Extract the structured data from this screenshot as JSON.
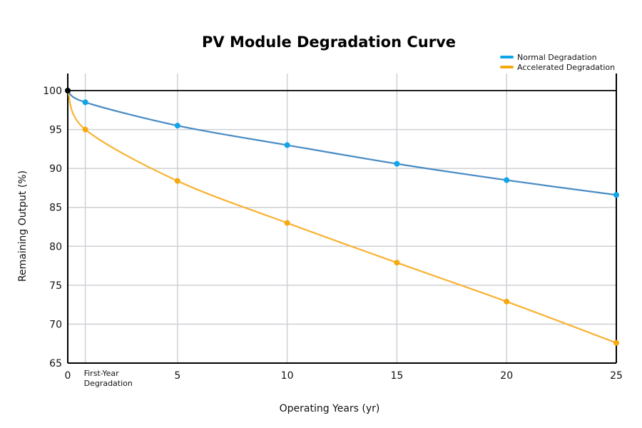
{
  "chart_data": {
    "type": "line",
    "title": "PV Module Degradation Curve",
    "xlabel": "Operating Years (yr)",
    "ylabel": "Remaining Output (%)",
    "xlim": [
      0,
      25
    ],
    "ylim": [
      65,
      102.2
    ],
    "x_ticks": [
      0,
      0.8,
      5,
      10,
      15,
      20,
      25
    ],
    "x_tick_labels": [
      "0",
      "First-Year Degradation",
      "5",
      "10",
      "15",
      "20",
      "25"
    ],
    "y_ticks": [
      65,
      70,
      75,
      80,
      85,
      90,
      95,
      100
    ],
    "grid": true,
    "legend_position": "top-right",
    "x": [
      0,
      0.8,
      5,
      10,
      15,
      20,
      25
    ],
    "series": [
      {
        "name": "Normal Degradation",
        "color": "#4a8cc4",
        "marker_color": "#0ea5e9",
        "values": [
          100,
          98.5,
          95.5,
          93.0,
          90.6,
          88.5,
          86.6
        ]
      },
      {
        "name": "Accelerated Degradation",
        "color": "#f9b233",
        "marker_color": "#f5a90f",
        "values": [
          100,
          95.0,
          88.4,
          83.0,
          77.9,
          72.9,
          67.6
        ]
      }
    ],
    "origin_marker_color": "#000000"
  }
}
